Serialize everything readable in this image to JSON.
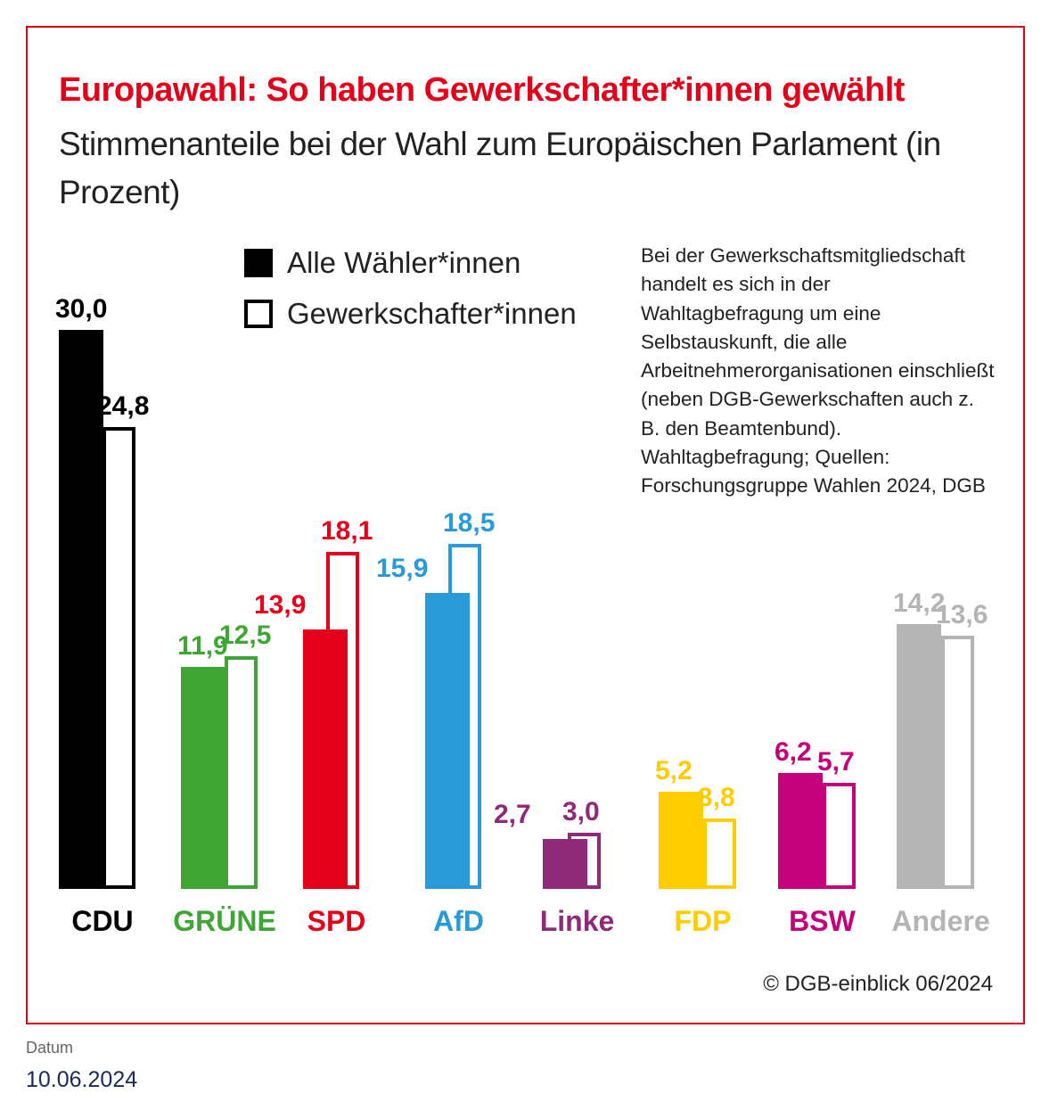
{
  "chart_data": {
    "type": "bar",
    "title": "Europawahl: So haben Gewerkschafter*innen gewählt",
    "subtitle": "Stimmenanteile bei der Wahl zum Europäischen Parlament (in Prozent)",
    "categories": [
      "CDU",
      "GRÜNE",
      "SPD",
      "AfD",
      "Linke",
      "FDP",
      "BSW",
      "Andere"
    ],
    "colors": [
      "#000000",
      "#3fa535",
      "#e2001a",
      "#2a9ad8",
      "#8e2a78",
      "#ffcc00",
      "#c4007a",
      "#b4b4b4"
    ],
    "series": [
      {
        "name": "Alle Wähler*innen",
        "values": [
          30.0,
          11.9,
          13.9,
          15.9,
          2.7,
          5.2,
          6.2,
          14.2
        ],
        "labels": [
          "30,0",
          "11,9",
          "13,9",
          "15,9",
          "2,7",
          "5,2",
          "6,2",
          "14,2"
        ]
      },
      {
        "name": "Gewerkschafter*innen",
        "values": [
          24.8,
          12.5,
          18.1,
          18.5,
          3.0,
          3.8,
          5.7,
          13.6
        ],
        "labels": [
          "24,8",
          "12,5",
          "18,1",
          "18,5",
          "3,0",
          "3,8",
          "5,7",
          "13,6"
        ]
      }
    ],
    "ylabel": "Prozent",
    "ylim": [
      0,
      30
    ],
    "grid": false,
    "legend": "top-center"
  },
  "note": "Bei der Gewerkschaftsmitgliedschaft handelt es sich in der Wahltagbefragung um eine Selbstauskunft, die alle Arbeitnehmerorganisationen einschließt (neben DGB-Gewerkschaften auch z. B. den Beamtenbund). Wahltagbefragung; Quellen: Forschungsgruppe Wahlen 2024, DGB",
  "copyright": "© DGB-einblick 06/2024",
  "date_label": "Datum",
  "date_value": "10.06.2024"
}
